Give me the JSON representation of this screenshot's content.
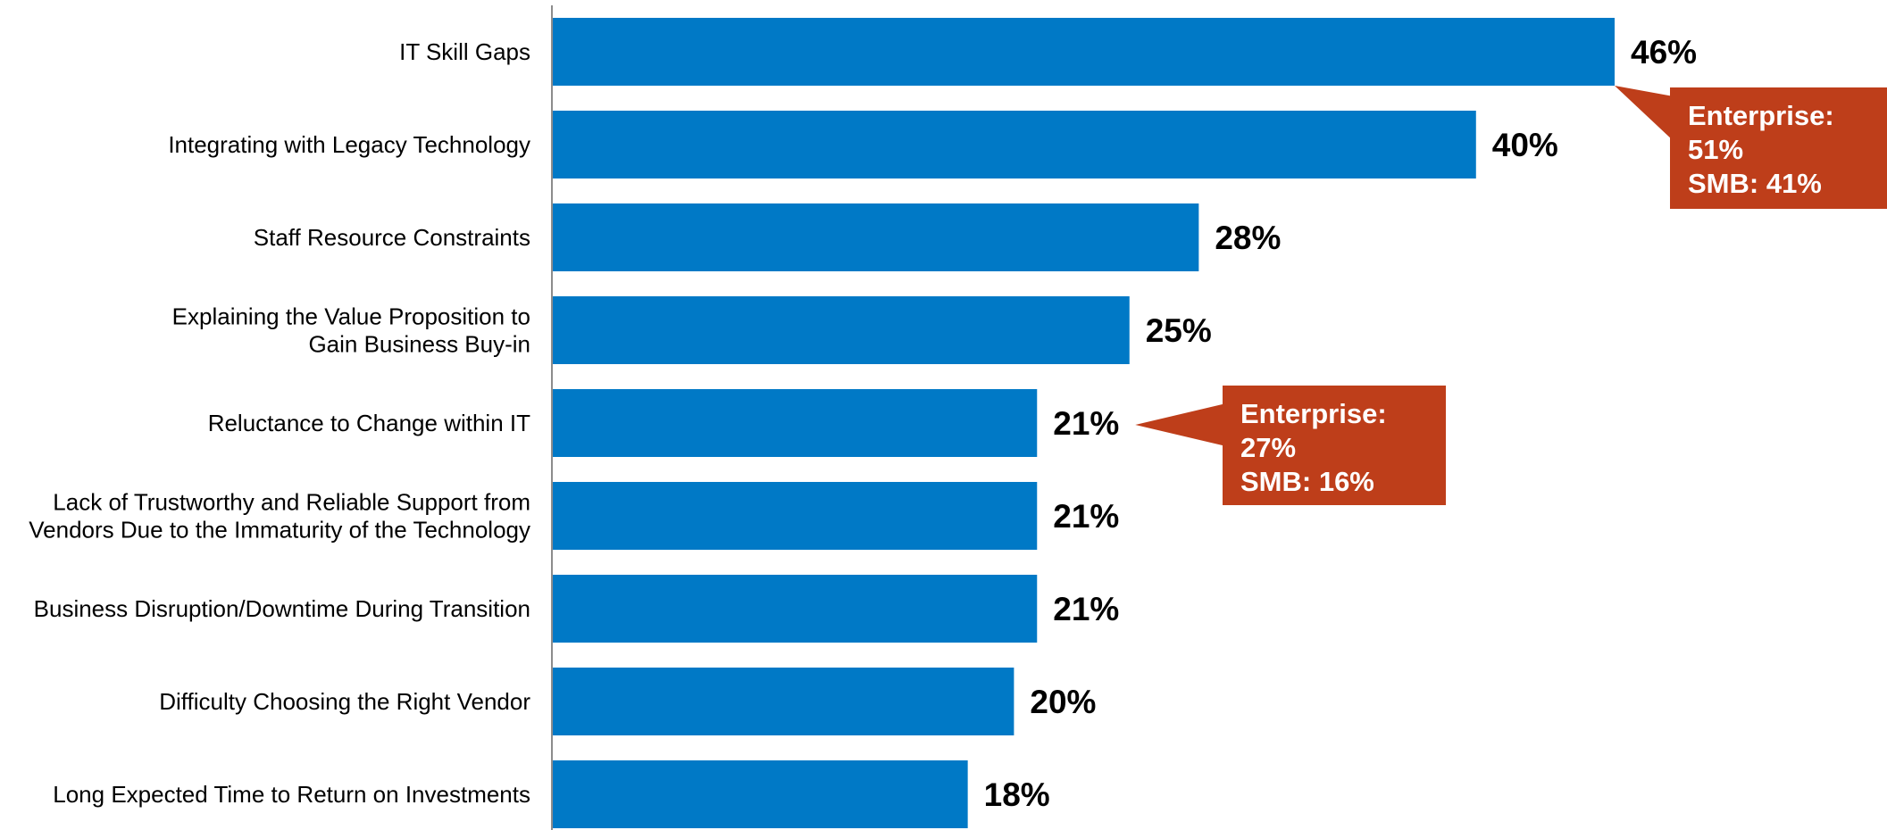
{
  "chart_data": {
    "type": "bar",
    "orientation": "horizontal",
    "categories": [
      "IT Skill Gaps",
      "Integrating with Legacy Technology",
      "Staff Resource Constraints",
      "Explaining the Value Proposition to\nGain Business Buy-in",
      "Reluctance to Change within IT",
      "Lack of Trustworthy and Reliable Support from\nVendors Due to the Immaturity of the Technology",
      "Business Disruption/Downtime During Transition",
      "Difficulty Choosing the Right Vendor",
      "Long Expected Time to Return on Investments"
    ],
    "values": [
      46,
      40,
      28,
      25,
      21,
      21,
      21,
      20,
      18
    ],
    "value_labels": [
      "46%",
      "40%",
      "28%",
      "25%",
      "21%",
      "21%",
      "21%",
      "20%",
      "18%"
    ],
    "title": "",
    "xlabel": "",
    "ylabel": "",
    "xlim": [
      0,
      46
    ],
    "grid": false,
    "legend": "none",
    "bar_color": "#0079C6",
    "callout_color": "#BE3E1A",
    "annotations": [
      {
        "category_index": 0,
        "lines": [
          "Enterprise:",
          "51%",
          "SMB: 41%"
        ]
      },
      {
        "category_index": 4,
        "lines": [
          "Enterprise:",
          "27%",
          "SMB: 16%"
        ]
      }
    ]
  }
}
